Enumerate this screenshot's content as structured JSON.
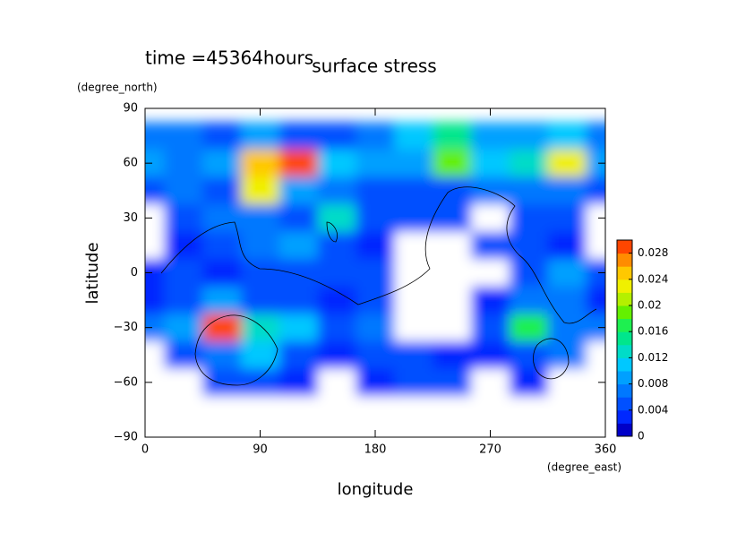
{
  "chart_data": {
    "type": "contour",
    "title": "surface stress",
    "subtitle": "time =45364hours",
    "x_label": "longitude",
    "y_label": "latitude",
    "x_unit": "(degree_east)",
    "y_unit": "(degree_north)",
    "x": [
      0,
      30,
      60,
      90,
      120,
      150,
      180,
      210,
      240,
      270,
      300,
      330,
      360
    ],
    "y": [
      75,
      60,
      45,
      30,
      15,
      0,
      -15,
      -30,
      -45,
      -60,
      -75
    ],
    "z": [
      [
        0.006,
        0.006,
        0.004,
        0.008,
        0.004,
        0.004,
        0.006,
        0.01,
        0.014,
        0.008,
        0.008,
        0.01,
        0.006
      ],
      [
        0.008,
        0.006,
        0.008,
        0.024,
        0.03,
        0.01,
        0.008,
        0.008,
        0.018,
        0.01,
        0.012,
        0.022,
        0.008
      ],
      [
        0.004,
        0.006,
        0.004,
        0.022,
        0.008,
        0.006,
        0.004,
        0.004,
        0.004,
        0.006,
        0.006,
        0.006,
        0.004
      ],
      [
        0,
        0.004,
        0.006,
        0.006,
        0.004,
        0.012,
        0.004,
        0.004,
        0.004,
        0,
        0.004,
        0.004,
        0
      ],
      [
        0,
        0.002,
        0.004,
        0.006,
        0.008,
        0.004,
        0.002,
        0,
        0,
        0.004,
        0.004,
        0.002,
        0
      ],
      [
        0.002,
        0.004,
        0.002,
        0.004,
        0.004,
        0.004,
        0.004,
        0,
        0,
        0,
        0.004,
        0.008,
        0.004
      ],
      [
        0.002,
        0.004,
        0.008,
        0.004,
        0.004,
        0.002,
        0.004,
        0,
        0,
        0.002,
        0.006,
        0.006,
        0.002
      ],
      [
        0.006,
        0.008,
        0.028,
        0.012,
        0.01,
        0.004,
        0.006,
        0,
        0,
        0.004,
        0.016,
        0.006,
        0.006
      ],
      [
        0,
        0.004,
        0.006,
        0.01,
        0.004,
        0.002,
        0.004,
        0.004,
        0.002,
        0.002,
        0.004,
        0.006,
        0
      ],
      [
        0,
        0,
        0.004,
        0.004,
        0.002,
        0,
        0.002,
        0.004,
        0.004,
        0,
        0.002,
        0,
        0
      ],
      [
        0,
        0,
        0,
        0,
        0,
        0,
        0,
        0,
        0,
        0,
        0,
        0,
        0
      ]
    ],
    "xlim": [
      0,
      360
    ],
    "ylim": [
      -90,
      90
    ],
    "xticks": [
      0,
      90,
      180,
      270,
      360
    ],
    "yticks": [
      {
        "value": -90,
        "label": "−90"
      },
      {
        "value": -60,
        "label": "−60"
      },
      {
        "value": -30,
        "label": "−30"
      },
      0,
      30,
      60,
      90
    ],
    "colorbar": {
      "lim": [
        0,
        0.03
      ],
      "ticks": [
        0,
        0.004,
        0.008,
        0.012,
        0.016,
        0.02,
        0.024,
        0.028
      ],
      "colors": [
        "#0000c8",
        "#0028ff",
        "#0050ff",
        "#0078ff",
        "#00a0ff",
        "#00c8ff",
        "#00dcc8",
        "#00e68c",
        "#1ef050",
        "#64f000",
        "#b4f000",
        "#f0f000",
        "#ffc800",
        "#ff8c00",
        "#ff4600"
      ]
    }
  }
}
